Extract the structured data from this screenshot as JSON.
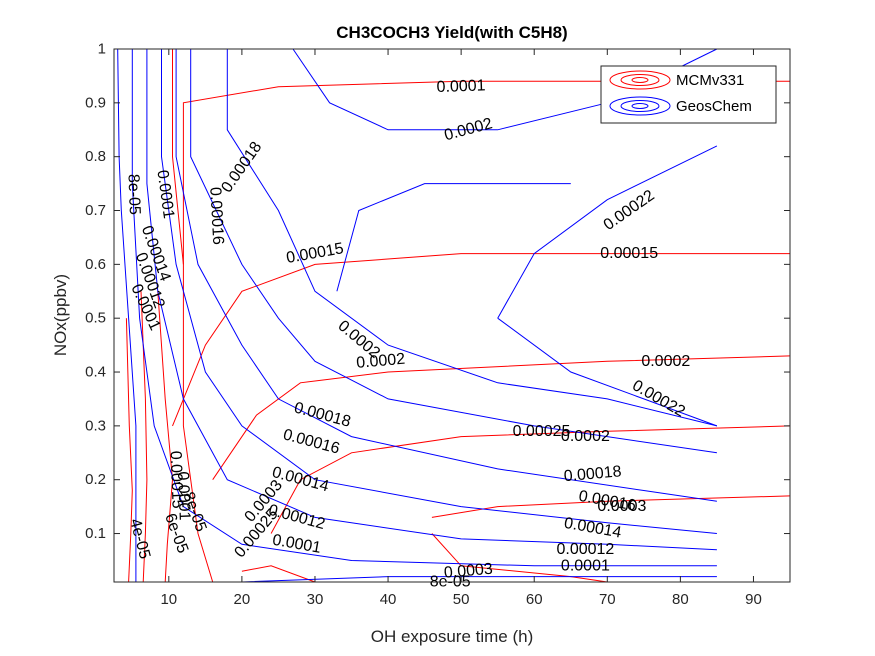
{
  "chart_data": {
    "type": "contour",
    "title": "CH3COCH3 Yield(with C5H8)",
    "xlabel": "OH exposure time (h)",
    "ylabel": "NOx(ppbv)",
    "xlim": [
      2.5,
      95
    ],
    "ylim": [
      0.01,
      1
    ],
    "xticks": [
      "10",
      "20",
      "30",
      "40",
      "50",
      "60",
      "70",
      "80",
      "90"
    ],
    "yticks": [
      "0.1",
      "0.2",
      "0.3",
      "0.4",
      "0.5",
      "0.6",
      "0.7",
      "0.8",
      "0.9",
      "1"
    ],
    "legend": {
      "position": "top-right",
      "entries": [
        {
          "name": "MCMv331",
          "color": "#ff0000"
        },
        {
          "name": "GeosChem",
          "color": "#0000ff"
        }
      ]
    },
    "series": [
      {
        "name": "MCMv331",
        "color": "#ff0000",
        "contours": [
          {
            "level": "4e-05",
            "points": [
              [
                4.5,
                0.01
              ],
              [
                4.8,
                0.1
              ],
              [
                5,
                0.18
              ],
              [
                4.6,
                0.3
              ],
              [
                4.2,
                0.5
              ]
            ]
          },
          {
            "level": "6e-05",
            "points": [
              [
                6.5,
                0.01
              ],
              [
                6.8,
                0.1
              ],
              [
                7,
                0.2
              ],
              [
                6.8,
                0.35
              ],
              [
                6.2,
                0.55
              ]
            ]
          },
          {
            "level": "8e-05",
            "points": [
              [
                9.5,
                0.01
              ],
              [
                9.8,
                0.08
              ],
              [
                10.5,
                0.2
              ],
              [
                9.5,
                0.35
              ],
              [
                8.5,
                0.55
              ]
            ]
          },
          {
            "level": "0.0001",
            "points": [
              [
                16,
                0.01
              ],
              [
                14,
                0.1
              ],
              [
                13,
                0.2
              ],
              [
                12,
                0.3
              ],
              [
                12,
                0.45
              ],
              [
                12,
                0.6
              ],
              [
                10.5,
                0.8
              ],
              [
                10.5,
                1
              ]
            ]
          },
          {
            "level": "0.0001",
            "points": [
              [
                12,
                0.6
              ],
              [
                12,
                0.8
              ],
              [
                12,
                0.9
              ],
              [
                25,
                0.93
              ],
              [
                50,
                0.94
              ],
              [
                80,
                0.94
              ],
              [
                95,
                0.94
              ]
            ]
          },
          {
            "level": "0.00015",
            "points": [
              [
                10.5,
                0.3
              ],
              [
                15,
                0.45
              ],
              [
                20,
                0.55
              ],
              [
                30,
                0.6
              ],
              [
                50,
                0.62
              ],
              [
                70,
                0.62
              ],
              [
                95,
                0.62
              ]
            ]
          },
          {
            "level": "0.0002",
            "points": [
              [
                16,
                0.2
              ],
              [
                22,
                0.32
              ],
              [
                28,
                0.38
              ],
              [
                40,
                0.4
              ],
              [
                70,
                0.42
              ],
              [
                95,
                0.43
              ]
            ]
          },
          {
            "level": "0.00025",
            "points": [
              [
                24,
                0.1
              ],
              [
                28,
                0.2
              ],
              [
                35,
                0.25
              ],
              [
                50,
                0.28
              ],
              [
                70,
                0.29
              ],
              [
                95,
                0.3
              ]
            ]
          },
          {
            "level": "0.0003",
            "points": [
              [
                20,
                0.03
              ],
              [
                24,
                0.04
              ],
              [
                30,
                0.01
              ]
            ]
          },
          {
            "level": "0.0003",
            "points": [
              [
                46,
                0.13
              ],
              [
                55,
                0.15
              ],
              [
                70,
                0.16
              ],
              [
                95,
                0.17
              ]
            ]
          },
          {
            "level": "0.0003",
            "points": [
              [
                46,
                0.1
              ],
              [
                50,
                0.04
              ],
              [
                65,
                0.02
              ],
              [
                70,
                0.01
              ]
            ]
          }
        ]
      },
      {
        "name": "GeosChem",
        "color": "#0000ff",
        "contours": [
          {
            "level": "8e-05",
            "points": [
              [
                3,
                1
              ],
              [
                3.2,
                0.8
              ],
              [
                3.5,
                0.7
              ],
              [
                4.5,
                0.5
              ],
              [
                5.5,
                0.3
              ],
              [
                5.5,
                0.01
              ]
            ]
          },
          {
            "level": "8e-05",
            "points": [
              [
                20,
                0.01
              ],
              [
                40,
                0.02
              ],
              [
                60,
                0.02
              ],
              [
                85,
                0.02
              ]
            ]
          },
          {
            "level": "0.0001",
            "points": [
              [
                5,
                1
              ],
              [
                5,
                0.75
              ],
              [
                6,
                0.5
              ],
              [
                8,
                0.3
              ],
              [
                12,
                0.15
              ],
              [
                20,
                0.08
              ],
              [
                35,
                0.05
              ],
              [
                60,
                0.04
              ],
              [
                85,
                0.04
              ]
            ]
          },
          {
            "level": "0.00012",
            "points": [
              [
                7,
                1
              ],
              [
                7,
                0.75
              ],
              [
                8.5,
                0.55
              ],
              [
                12,
                0.35
              ],
              [
                18,
                0.2
              ],
              [
                30,
                0.13
              ],
              [
                50,
                0.09
              ],
              [
                70,
                0.08
              ],
              [
                85,
                0.07
              ]
            ]
          },
          {
            "level": "0.00014",
            "points": [
              [
                9,
                1
              ],
              [
                9,
                0.8
              ],
              [
                11,
                0.6
              ],
              [
                15,
                0.4
              ],
              [
                20,
                0.3
              ],
              [
                30,
                0.2
              ],
              [
                50,
                0.15
              ],
              [
                70,
                0.12
              ],
              [
                85,
                0.1
              ]
            ]
          },
          {
            "level": "0.00016",
            "points": [
              [
                11,
                1
              ],
              [
                11,
                0.8
              ],
              [
                14,
                0.6
              ],
              [
                20,
                0.45
              ],
              [
                25,
                0.35
              ],
              [
                35,
                0.28
              ],
              [
                55,
                0.22
              ],
              [
                75,
                0.18
              ],
              [
                85,
                0.16
              ]
            ]
          },
          {
            "level": "0.00018",
            "points": [
              [
                13,
                1
              ],
              [
                13,
                0.8
              ],
              [
                20,
                0.6
              ],
              [
                25,
                0.5
              ],
              [
                30,
                0.42
              ],
              [
                40,
                0.35
              ],
              [
                60,
                0.3
              ],
              [
                85,
                0.25
              ]
            ]
          },
          {
            "level": "0.0002",
            "points": [
              [
                18,
                1
              ],
              [
                18,
                0.85
              ],
              [
                25,
                0.7
              ],
              [
                30,
                0.55
              ],
              [
                40,
                0.45
              ],
              [
                55,
                0.38
              ],
              [
                70,
                0.35
              ],
              [
                85,
                0.3
              ]
            ]
          },
          {
            "level": "0.00022",
            "points": [
              [
                27,
                1
              ],
              [
                32,
                0.9
              ],
              [
                40,
                0.85
              ],
              [
                55,
                0.85
              ],
              [
                70,
                0.9
              ],
              [
                85,
                1
              ]
            ]
          },
          {
            "level": "0.00022",
            "points": [
              [
                33,
                0.55
              ],
              [
                36,
                0.7
              ],
              [
                45,
                0.75
              ],
              [
                55,
                0.75
              ],
              [
                65,
                0.75
              ]
            ]
          },
          {
            "level": "0.00022",
            "points": [
              [
                55,
                0.5
              ],
              [
                60,
                0.62
              ],
              [
                70,
                0.72
              ],
              [
                85,
                0.82
              ]
            ]
          },
          {
            "level": "0.00022",
            "points": [
              [
                55,
                0.5
              ],
              [
                65,
                0.4
              ],
              [
                75,
                0.35
              ],
              [
                85,
                0.3
              ]
            ]
          }
        ]
      }
    ],
    "contour_labels": [
      {
        "text": "0.0001",
        "x": 50,
        "y": 0.93,
        "angle": -2,
        "color": "red"
      },
      {
        "text": "0.0002",
        "x": 51,
        "y": 0.85,
        "angle": -15,
        "color": "blue"
      },
      {
        "text": "0.00018",
        "x": 20,
        "y": 0.78,
        "angle": -55,
        "color": "blue"
      },
      {
        "text": "0.00022",
        "x": 73,
        "y": 0.7,
        "angle": -35,
        "color": "blue"
      },
      {
        "text": "0.00016",
        "x": 16.5,
        "y": 0.69,
        "angle": 87,
        "color": "blue"
      },
      {
        "text": "0.0001",
        "x": 9.5,
        "y": 0.73,
        "angle": 82,
        "color": "blue"
      },
      {
        "text": "8e-05",
        "x": 5.2,
        "y": 0.73,
        "angle": 88,
        "color": "blue"
      },
      {
        "text": "0.00014",
        "x": 8.2,
        "y": 0.62,
        "angle": 70,
        "color": "blue"
      },
      {
        "text": "0.00012",
        "x": 7.4,
        "y": 0.57,
        "angle": 70,
        "color": "blue"
      },
      {
        "text": "0.0001",
        "x": 6.8,
        "y": 0.52,
        "angle": 65,
        "color": "blue"
      },
      {
        "text": "0.00015",
        "x": 30,
        "y": 0.62,
        "angle": -10,
        "color": "red"
      },
      {
        "text": "0.00015",
        "x": 73,
        "y": 0.62,
        "angle": 0,
        "color": "red"
      },
      {
        "text": "0.0002",
        "x": 36,
        "y": 0.46,
        "angle": 40,
        "color": "blue"
      },
      {
        "text": "0.0002",
        "x": 39,
        "y": 0.42,
        "angle": -5,
        "color": "red"
      },
      {
        "text": "0.0002",
        "x": 78,
        "y": 0.42,
        "angle": 0,
        "color": "red"
      },
      {
        "text": "0.00022",
        "x": 77,
        "y": 0.35,
        "angle": 30,
        "color": "blue"
      },
      {
        "text": "0.00018",
        "x": 31,
        "y": 0.32,
        "angle": 15,
        "color": "blue"
      },
      {
        "text": "0.00016",
        "x": 29.5,
        "y": 0.27,
        "angle": 15,
        "color": "blue"
      },
      {
        "text": "0.00014",
        "x": 28,
        "y": 0.2,
        "angle": 15,
        "color": "blue"
      },
      {
        "text": "0.00012",
        "x": 27.5,
        "y": 0.13,
        "angle": 15,
        "color": "blue"
      },
      {
        "text": "0.0001",
        "x": 27.5,
        "y": 0.08,
        "angle": 10,
        "color": "blue"
      },
      {
        "text": "0.00025",
        "x": 61,
        "y": 0.29,
        "angle": 0,
        "color": "red"
      },
      {
        "text": "0.0002",
        "x": 67,
        "y": 0.28,
        "angle": 0,
        "color": "blue"
      },
      {
        "text": "0.00018",
        "x": 68,
        "y": 0.21,
        "angle": -5,
        "color": "blue"
      },
      {
        "text": "0.00016",
        "x": 70,
        "y": 0.16,
        "angle": 10,
        "color": "blue"
      },
      {
        "text": "0.0003",
        "x": 72,
        "y": 0.15,
        "angle": 0,
        "color": "red"
      },
      {
        "text": "0.00014",
        "x": 68,
        "y": 0.11,
        "angle": 10,
        "color": "blue"
      },
      {
        "text": "0.00012",
        "x": 67,
        "y": 0.07,
        "angle": 0,
        "color": "blue"
      },
      {
        "text": "0.0001",
        "x": 67,
        "y": 0.04,
        "angle": 0,
        "color": "blue"
      },
      {
        "text": "0.0003",
        "x": 51,
        "y": 0.03,
        "angle": -5,
        "color": "red"
      },
      {
        "text": "8e-05",
        "x": 48.5,
        "y": 0.01,
        "angle": 0,
        "color": "blue"
      },
      {
        "text": "0.00025",
        "x": 22,
        "y": 0.1,
        "angle": -50,
        "color": "red"
      },
      {
        "text": "0.0003",
        "x": 23,
        "y": 0.16,
        "angle": -50,
        "color": "red"
      },
      {
        "text": "0.00015",
        "x": 11,
        "y": 0.2,
        "angle": 88,
        "color": "red"
      },
      {
        "text": "0.0001",
        "x": 12,
        "y": 0.17,
        "angle": 88,
        "color": "red"
      },
      {
        "text": "8e-05",
        "x": 13.5,
        "y": 0.14,
        "angle": 70,
        "color": "red"
      },
      {
        "text": "6e-05",
        "x": 11,
        "y": 0.1,
        "angle": 70,
        "color": "red"
      },
      {
        "text": "4e-05",
        "x": 6,
        "y": 0.09,
        "angle": 75,
        "color": "red"
      }
    ]
  }
}
